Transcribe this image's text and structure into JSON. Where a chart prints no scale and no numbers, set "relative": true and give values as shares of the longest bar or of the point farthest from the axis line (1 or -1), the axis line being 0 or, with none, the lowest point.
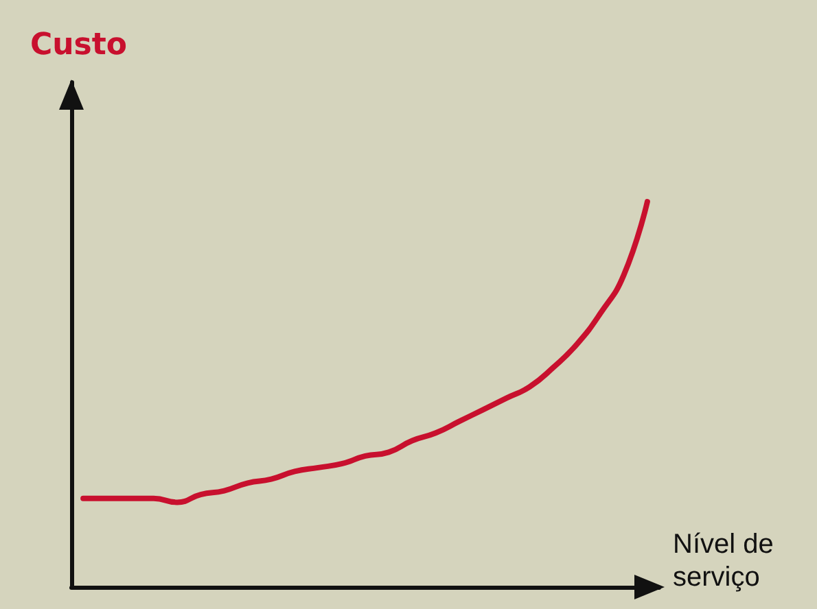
{
  "chart_data": {
    "type": "line",
    "relative": true,
    "xlabel": "Nível de\nserviço",
    "ylabel": "Custo",
    "categories": [
      null,
      null,
      null,
      null,
      null,
      null,
      null,
      null,
      null,
      null,
      null,
      null,
      null,
      null,
      null,
      null,
      null,
      null,
      null,
      null,
      null,
      null,
      null,
      null,
      null
    ],
    "series": [
      {
        "color": "#c8102e",
        "values": [
          0.23,
          0.23,
          0.23,
          0.23,
          0.22,
          0.24,
          0.25,
          0.27,
          0.28,
          0.3,
          0.31,
          0.32,
          0.34,
          0.35,
          0.38,
          0.4,
          0.43,
          0.46,
          0.49,
          0.52,
          0.57,
          0.63,
          0.71,
          0.81,
          1
        ]
      }
    ],
    "grid": false,
    "marker": "none",
    "line_style": "solid"
  }
}
